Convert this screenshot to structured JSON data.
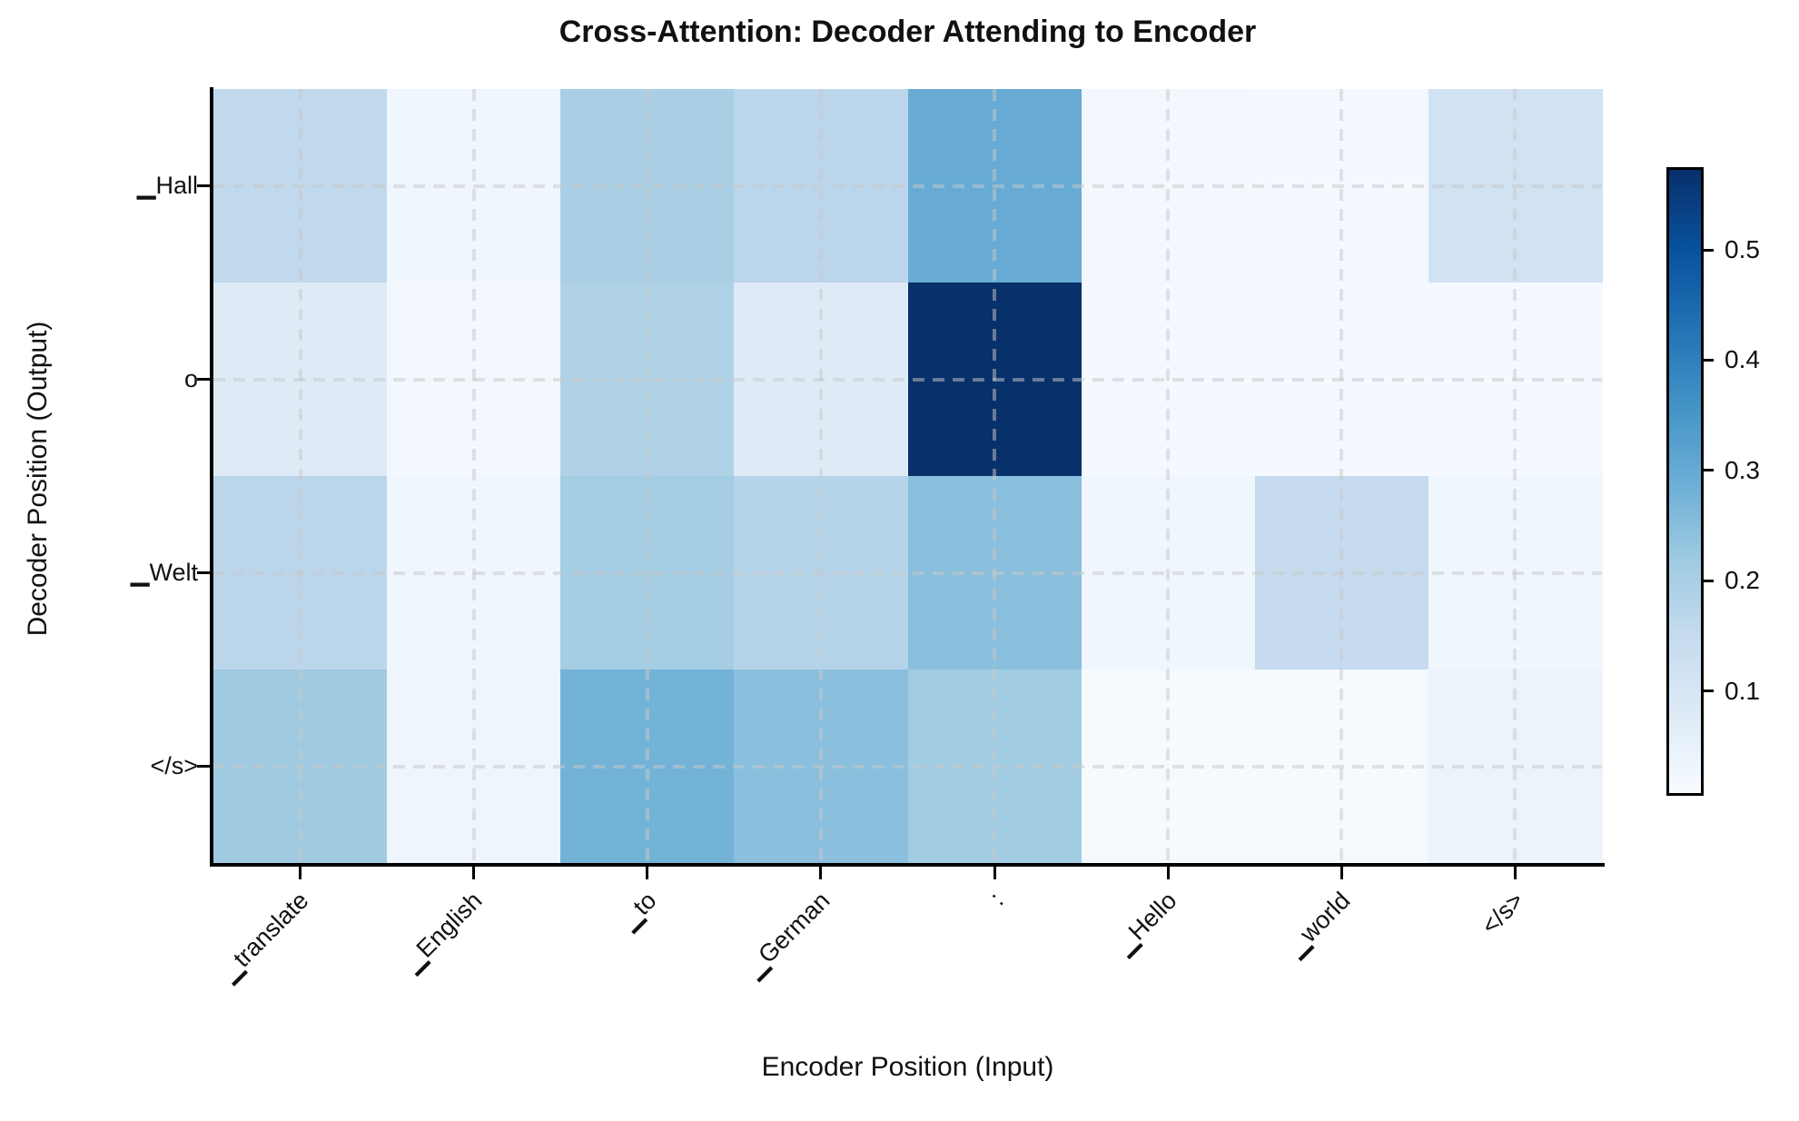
{
  "chart_data": {
    "type": "heatmap",
    "title": "Cross-Attention: Decoder Attending to Encoder",
    "xlabel": "Encoder Position (Input)",
    "ylabel": "Decoder Position (Output)",
    "x_tick_labels": [
      "▁translate",
      "▁English",
      "▁to",
      "▁German",
      ":",
      "▁Hello",
      "▁world",
      "</s>"
    ],
    "y_tick_labels": [
      "▁Hall",
      "o",
      "▁Welt",
      "</s>"
    ],
    "series": [
      {
        "name": "▁Hall",
        "values": [
          0.16,
          0.03,
          0.2,
          0.17,
          0.3,
          0.025,
          0.02,
          0.12
        ]
      },
      {
        "name": "o",
        "values": [
          0.08,
          0.025,
          0.19,
          0.08,
          0.575,
          0.02,
          0.02,
          0.02
        ]
      },
      {
        "name": "▁Welt",
        "values": [
          0.17,
          0.03,
          0.21,
          0.18,
          0.25,
          0.03,
          0.15,
          0.03
        ]
      },
      {
        "name": "</s>",
        "values": [
          0.22,
          0.035,
          0.28,
          0.25,
          0.215,
          0.015,
          0.015,
          0.045
        ]
      }
    ],
    "colormap": "Blues",
    "vmin": 0.01,
    "vmax": 0.575,
    "colorbar_ticks": [
      0.1,
      0.2,
      0.3,
      0.4,
      0.5
    ],
    "colorbar_tick_labels": [
      "0.1",
      "0.2",
      "0.3",
      "0.4",
      "0.5"
    ],
    "grid": true,
    "legend_position": "right-colorbar"
  },
  "colors": {
    "background": "#ffffff",
    "spine": "#000000",
    "gridline": "rgba(200,200,200,0.5)",
    "text": "#111111",
    "colormap_min": "#f7fbff",
    "colormap_max": "#08306b"
  }
}
